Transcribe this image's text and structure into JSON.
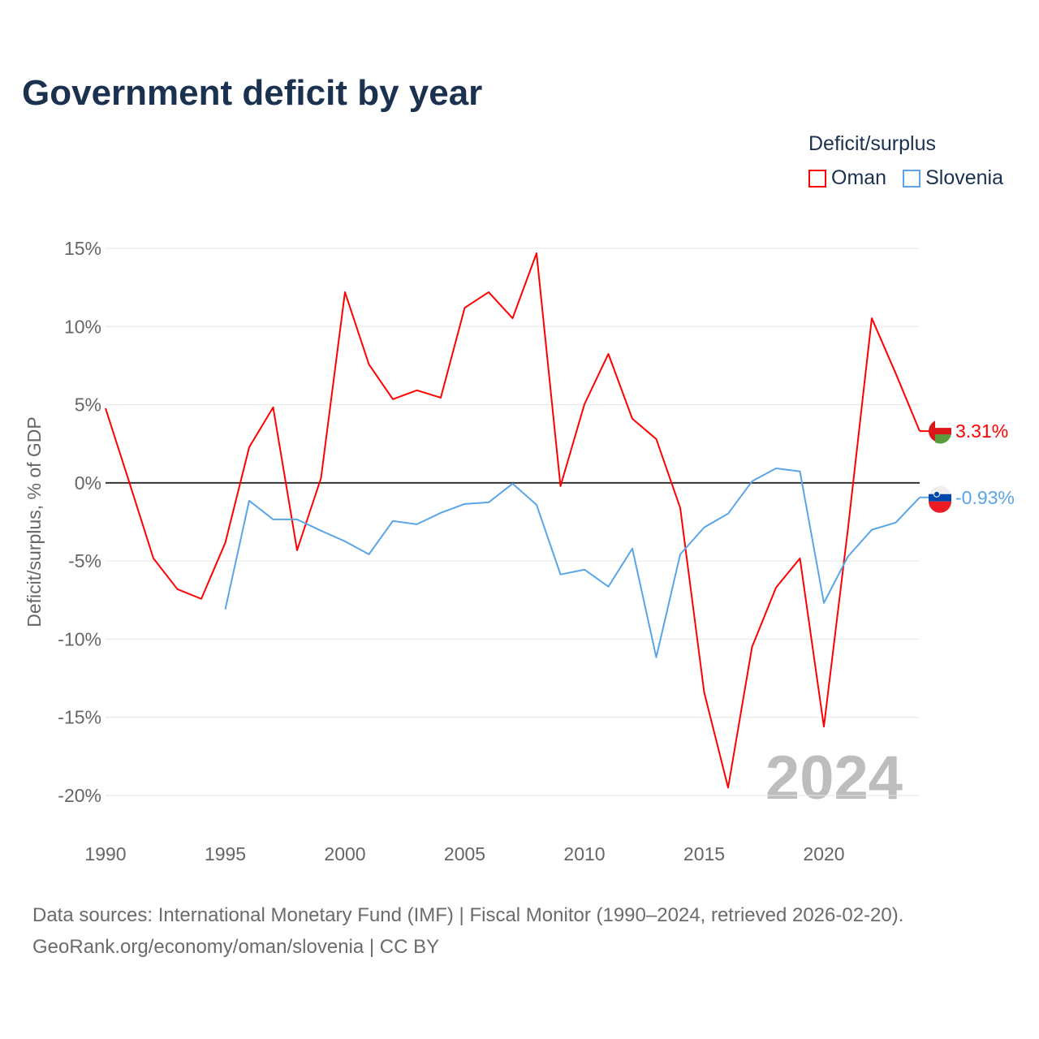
{
  "title": "Government deficit by year",
  "legend": {
    "title": "Deficit/surplus",
    "items": [
      {
        "name": "Oman",
        "color": "#ff0000"
      },
      {
        "name": "Slovenia",
        "color": "#5aa5e8"
      }
    ]
  },
  "footer": {
    "line1": "Data sources: International Monetary Fund (IMF) | Fiscal Monitor (1990–2024, retrieved 2026-02-20).",
    "line2": "GeoRank.org/economy/oman/slovenia | CC BY"
  },
  "chart_data": {
    "type": "line",
    "title": "Government deficit by year",
    "xlabel": "",
    "ylabel": "Deficit/surplus, % of GDP",
    "xlim": [
      1990,
      2024
    ],
    "ylim": [
      -20,
      15
    ],
    "x_ticks": [
      1990,
      1995,
      2000,
      2005,
      2010,
      2015,
      2020
    ],
    "x_tick_labels": [
      "1990",
      "1995",
      "2000",
      "2005",
      "2010",
      "2015",
      "2020"
    ],
    "y_ticks": [
      15,
      10,
      5,
      0,
      -5,
      -10,
      -15,
      -20
    ],
    "y_tick_labels": [
      "15%",
      "10%",
      "5%",
      "0%",
      "-5%",
      "-10%",
      "-15%",
      "-20%"
    ],
    "grid": true,
    "watermark_year": "2024",
    "series": [
      {
        "name": "Oman",
        "color": "#ff0000",
        "end_label": "3.31%",
        "x": [
          1990,
          1991,
          1992,
          1993,
          1994,
          1995,
          1996,
          1997,
          1998,
          1999,
          2000,
          2001,
          2002,
          2003,
          2004,
          2005,
          2006,
          2007,
          2008,
          2009,
          2010,
          2011,
          2012,
          2013,
          2014,
          2015,
          2016,
          2017,
          2018,
          2019,
          2020,
          2021,
          2022,
          2023,
          2024
        ],
        "values": [
          4.77,
          0.0,
          -4.83,
          -6.8,
          -7.42,
          -3.84,
          2.28,
          4.83,
          -4.31,
          0.31,
          12.2,
          7.58,
          5.35,
          5.92,
          5.45,
          11.2,
          12.2,
          10.53,
          14.69,
          -0.21,
          5.03,
          8.25,
          4.1,
          2.8,
          -1.6,
          -13.4,
          -19.5,
          -10.5,
          -6.7,
          -4.83,
          -15.6,
          -3.0,
          10.53,
          7.0,
          3.31
        ]
      },
      {
        "name": "Slovenia",
        "color": "#5aa5e8",
        "end_label": "-0.93%",
        "x": [
          1995,
          1996,
          1997,
          1998,
          1999,
          2000,
          2001,
          2002,
          2003,
          2004,
          2005,
          2006,
          2007,
          2008,
          2009,
          2010,
          2011,
          2012,
          2013,
          2014,
          2015,
          2016,
          2017,
          2018,
          2019,
          2020,
          2021,
          2022,
          2023,
          2024
        ],
        "values": [
          -8.1,
          -1.14,
          -2.34,
          -2.34,
          -3.06,
          -3.74,
          -4.57,
          -2.44,
          -2.65,
          -1.92,
          -1.35,
          -1.25,
          -0.05,
          -1.4,
          -5.86,
          -5.55,
          -6.64,
          -4.2,
          -11.16,
          -4.57,
          -2.85,
          -1.97,
          0.1,
          0.93,
          0.73,
          -7.68,
          -4.72,
          -3.0,
          -2.54,
          -0.93
        ]
      }
    ]
  }
}
